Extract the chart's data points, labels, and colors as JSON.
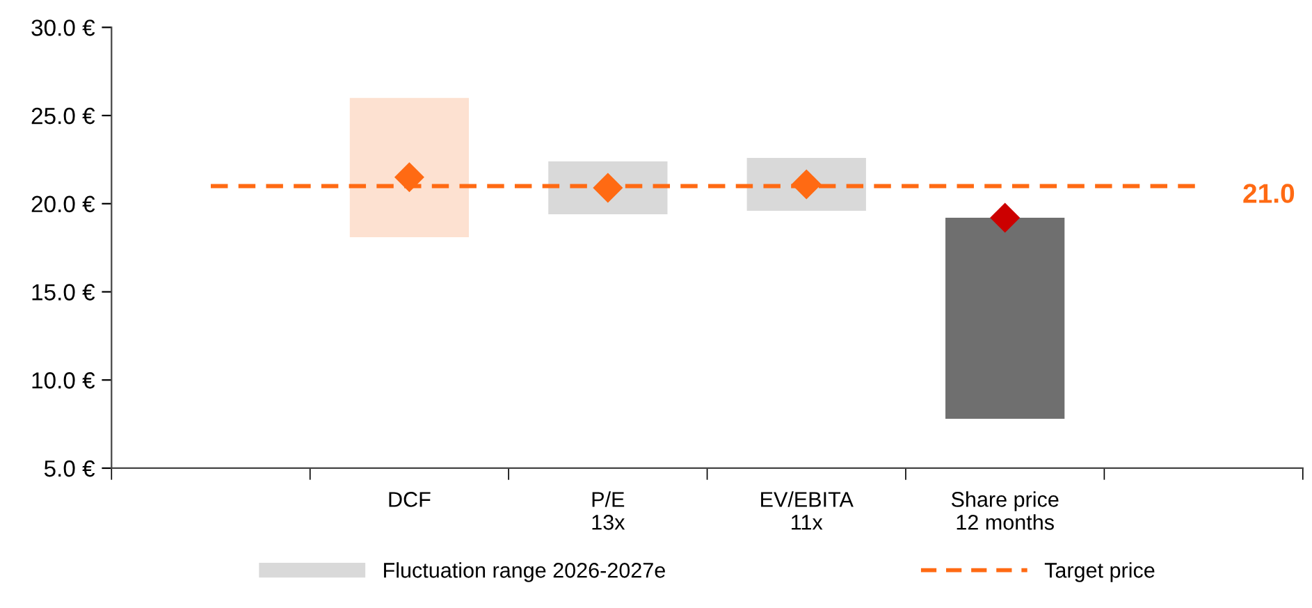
{
  "chart_data": {
    "type": "bar",
    "categories": [
      null,
      "DCF",
      "P/E\n13x",
      "EV/EBITA\n11x",
      "Share price\n12 months",
      null
    ],
    "series": [
      {
        "name": "Fluctuation range 2026-2027e",
        "color": "#d9d9d9",
        "colors": [
          "#d9d9d9",
          "#fde1d1",
          "#d9d9d9",
          "#d9d9d9",
          "#6f6f6f",
          "#d9d9d9"
        ],
        "base": [
          null,
          18.1,
          19.4,
          19.6,
          7.8,
          null
        ],
        "values": [
          null,
          7.9,
          3.0,
          3.0,
          11.4,
          null
        ]
      },
      {
        "type": "scatter",
        "marker": "diamond",
        "colors": [
          "#ff6a13",
          "#ff6a13",
          "#ff6a13",
          "#ff6a13",
          "#cc0000",
          "#ff6a13"
        ],
        "values": [
          null,
          21.5,
          20.9,
          21.1,
          19.2,
          null
        ]
      }
    ],
    "ref_lines": [
      {
        "axis": "y",
        "value": 21.0,
        "label": "Target price",
        "color": "#ff6a13",
        "line_style": "dashed"
      }
    ],
    "annotations": [
      "21.0"
    ],
    "ylim": [
      5,
      30
    ],
    "yticks": [
      {
        "value": 5,
        "label": "5.0 €"
      },
      {
        "value": 10,
        "label": "10.0 €"
      },
      {
        "value": 15,
        "label": "15.0 €"
      },
      {
        "value": 20,
        "label": "20.0 €"
      },
      {
        "value": 25,
        "label": "25.0 €"
      },
      {
        "value": 30,
        "label": "30.0 €"
      }
    ],
    "grid": false,
    "legend": "bottom"
  }
}
